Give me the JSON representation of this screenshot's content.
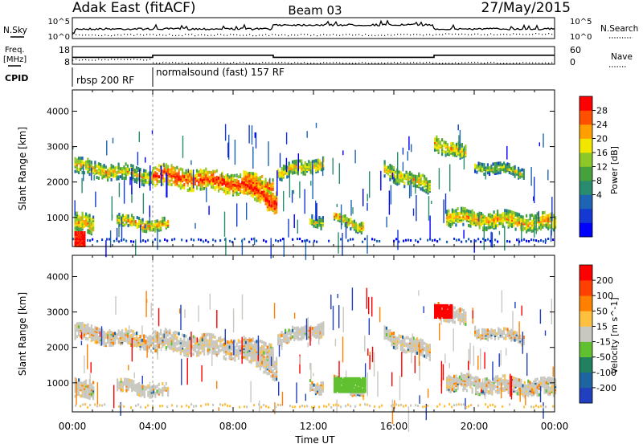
{
  "header": {
    "title": "Adak East (fitACF)",
    "beam": "Beam 03",
    "date": "27/May/2015"
  },
  "colors": {
    "background": "#ffffff",
    "axis": "#000000",
    "ground_scatter": "#c8c8c0"
  },
  "chart_data": [
    {
      "type": "line",
      "panel": "sky-search",
      "left_label": "N.Sky",
      "right_label": "N.Search",
      "left_ticks": [
        "10^5",
        "10^0"
      ],
      "right_ticks": [
        "10^5",
        "10^0"
      ]
    },
    {
      "type": "line",
      "panel": "freq-nave",
      "left_label_1": "Freq.",
      "left_label_2": "[MHz]",
      "right_label": "Nave",
      "left_ticks": [
        "18",
        "8"
      ],
      "right_ticks": [
        "60",
        "0"
      ],
      "freq_segments": [
        {
          "x_start": 0.0,
          "x_end": 4.0,
          "value": 11.9
        },
        {
          "x_start": 4.0,
          "x_end": 10.0,
          "value": 13.1
        },
        {
          "x_start": 10.0,
          "x_end": 18.0,
          "value": 11.9
        },
        {
          "x_start": 18.0,
          "x_end": 24.0,
          "value": 13.1
        }
      ]
    },
    {
      "type": "table",
      "panel": "cpid",
      "label": "CPID",
      "segments": [
        {
          "x_start": 0.0,
          "x_end": 4.0,
          "text": "rbsp 200 RF"
        },
        {
          "x_start": 4.0,
          "x_end": 24.0,
          "text": "normalsound (fast) 157 RF"
        }
      ]
    },
    {
      "type": "heatmap",
      "panel": "power",
      "ylabel": "Slant Range [km]",
      "xlim": [
        0,
        24
      ],
      "ylim": [
        180,
        4600
      ],
      "y_ticks": [
        1000,
        2000,
        3000,
        4000
      ],
      "colorbar_label": "Power [dB]",
      "colorbar_ticks": [
        "28",
        "24",
        "20",
        "16",
        "12",
        "8",
        "4"
      ],
      "colorbar_colors": [
        "#0000ff",
        "#1438d2",
        "#1e64b4",
        "#2a8c6e",
        "#46a03c",
        "#8cc828",
        "#f0e600",
        "#ffa000",
        "#ff5000",
        "#ff0000"
      ],
      "echo_bands": [
        {
          "t0": 0.1,
          "t1": 4.0,
          "c0": 2500,
          "c1": 2200,
          "h": 220,
          "level": 0.35
        },
        {
          "t0": 4.0,
          "t1": 10.0,
          "c0": 2250,
          "c1": 1900,
          "h": 280,
          "level": 0.55
        },
        {
          "t0": 8.5,
          "t1": 10.2,
          "c0": 2000,
          "c1": 1450,
          "h": 320,
          "level": 0.6
        },
        {
          "t0": 10.2,
          "t1": 12.5,
          "c0": 2300,
          "c1": 2600,
          "h": 200,
          "level": 0.35
        },
        {
          "t0": 0.1,
          "t1": 1.0,
          "c0": 900,
          "c1": 800,
          "h": 250,
          "level": 0.4
        },
        {
          "t0": 2.2,
          "t1": 4.8,
          "c0": 950,
          "c1": 800,
          "h": 160,
          "level": 0.4
        },
        {
          "t0": 11.8,
          "t1": 12.5,
          "c0": 1000,
          "c1": 900,
          "h": 160,
          "level": 0.3
        },
        {
          "t0": 13.0,
          "t1": 14.5,
          "c0": 1050,
          "c1": 780,
          "h": 150,
          "level": 0.4
        },
        {
          "t0": 15.5,
          "t1": 17.8,
          "c0": 2400,
          "c1": 1900,
          "h": 220,
          "level": 0.35
        },
        {
          "t0": 18.0,
          "t1": 19.6,
          "c0": 3200,
          "c1": 2800,
          "h": 220,
          "level": 0.35
        },
        {
          "t0": 18.6,
          "t1": 24.0,
          "c0": 1050,
          "c1": 900,
          "h": 240,
          "level": 0.4
        },
        {
          "t0": 20.0,
          "t1": 22.5,
          "c0": 2500,
          "c1": 2300,
          "h": 140,
          "level": 0.25
        }
      ],
      "hot_spot": {
        "t0": 0.1,
        "t1": 0.6,
        "r0": 250,
        "r1": 650
      }
    },
    {
      "type": "heatmap",
      "panel": "velocity",
      "xlabel": "Time UT",
      "ylabel": "Slant Range [km]",
      "xlim": [
        0,
        24
      ],
      "ylim": [
        180,
        4600
      ],
      "x_ticks": [
        "00:00",
        "04:00",
        "08:00",
        "12:00",
        "16:00",
        "20:00",
        "00:00"
      ],
      "y_ticks": [
        1000,
        2000,
        3000,
        4000
      ],
      "colorbar_label": "Velocity [m s^-1]",
      "colorbar_ticks": [
        "200",
        "100",
        "50",
        "15",
        "-15",
        "-50",
        "-100",
        "-200"
      ],
      "colorbar_colors": [
        "#2040c0",
        "#1e64a0",
        "#208060",
        "#60c030",
        "#c8c8c0",
        "#ffc040",
        "#ff8000",
        "#ff4000",
        "#ff0000"
      ],
      "green_patch": {
        "t0": 13.0,
        "t1": 14.6,
        "r0": 800,
        "r1": 1200
      },
      "red_patch": {
        "t0": 18.0,
        "t1": 18.9,
        "r0": 2900,
        "r1": 3250
      }
    }
  ]
}
